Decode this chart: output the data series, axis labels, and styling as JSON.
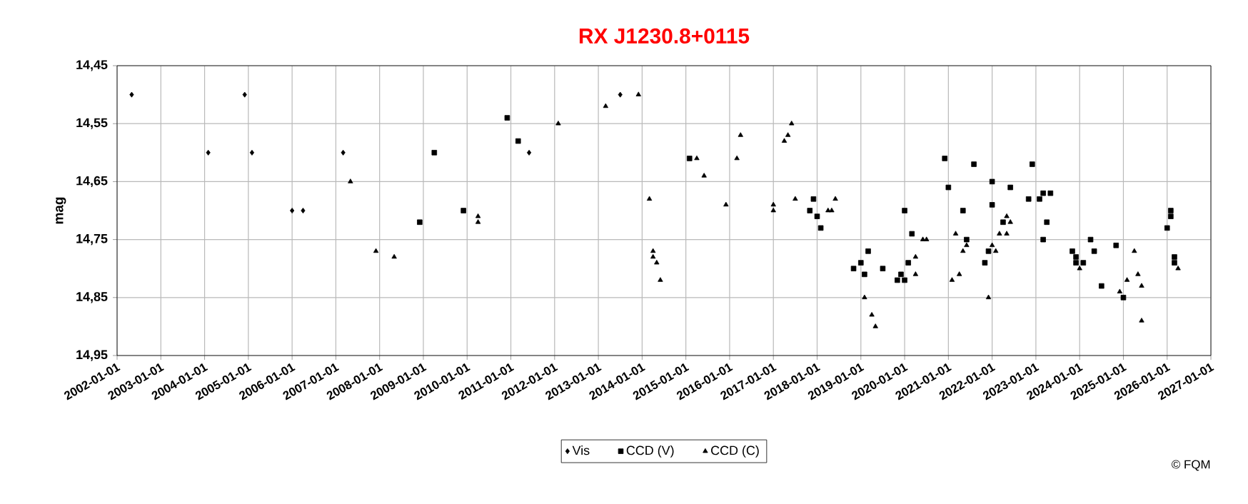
{
  "chart_data": {
    "type": "scatter",
    "title": "RX J1230.8+0115",
    "ylabel": "mag",
    "xlim": [
      "2002-01-01",
      "2027-01-01"
    ],
    "xticks": [
      {
        "value": "2002-01-01",
        "label": "2002-01-01"
      },
      {
        "value": "2003-01-01",
        "label": "2003-01-01"
      },
      {
        "value": "2004-01-01",
        "label": "2004-01-01"
      },
      {
        "value": "2005-01-01",
        "label": "2005-01-01"
      },
      {
        "value": "2006-01-01",
        "label": "2006-01-01"
      },
      {
        "value": "2007-01-01",
        "label": "2007-01-01"
      },
      {
        "value": "2008-01-01",
        "label": "2008-01-01"
      },
      {
        "value": "2009-01-01",
        "label": "2009-01-01"
      },
      {
        "value": "2010-01-01",
        "label": "2010-01-01"
      },
      {
        "value": "2011-01-01",
        "label": "2011-01-01"
      },
      {
        "value": "2012-01-01",
        "label": "2012-01-01"
      },
      {
        "value": "2013-01-01",
        "label": "2013-01-01"
      },
      {
        "value": "2014-01-01",
        "label": "2014-01-01"
      },
      {
        "value": "2015-01-01",
        "label": "2015-01-01"
      },
      {
        "value": "2016-01-01",
        "label": "2016-01-01"
      },
      {
        "value": "2017-01-01",
        "label": "2017-01-01"
      },
      {
        "value": "2018-01-01",
        "label": "2018-01-01"
      },
      {
        "value": "2019-01-01",
        "label": "2019-01-01"
      },
      {
        "value": "2020-01-01",
        "label": "2020-01-01"
      },
      {
        "value": "2021-01-01",
        "label": "2021-01-01"
      },
      {
        "value": "2022-01-01",
        "label": "2022-01-01"
      },
      {
        "value": "2023-01-01",
        "label": "2023-01-01"
      },
      {
        "value": "2024-01-01",
        "label": "2024-01-01"
      },
      {
        "value": "2025-01-01",
        "label": "2025-01-01"
      },
      {
        "value": "2026-01-01",
        "label": "2026-01-01"
      },
      {
        "value": "2027-01-01",
        "label": "2027-01-01"
      }
    ],
    "ylim": [
      14.95,
      14.45
    ],
    "yticks": [
      {
        "value": 14.45,
        "label": "14,45"
      },
      {
        "value": 14.55,
        "label": "14,55"
      },
      {
        "value": 14.65,
        "label": "14,65"
      },
      {
        "value": 14.75,
        "label": "14,75"
      },
      {
        "value": 14.85,
        "label": "14,85"
      },
      {
        "value": 14.95,
        "label": "14,95"
      }
    ],
    "grid": true,
    "legend": "bottom",
    "series": [
      {
        "name": "Vis",
        "color": "#000000",
        "marker": "diamond",
        "x": [
          "2002-05",
          "2004-02",
          "2004-12",
          "2005-02",
          "2006-01",
          "2006-04",
          "2007-03",
          "2011-06",
          "2013-07"
        ],
        "values": [
          14.5,
          14.6,
          14.5,
          14.6,
          14.7,
          14.7,
          14.6,
          14.6,
          14.5
        ]
      },
      {
        "name": "CCD (V)",
        "color": "#000000",
        "marker": "square",
        "x": [
          "2008-12",
          "2009-04",
          "2009-12",
          "2010-12",
          "2011-03",
          "2015-02",
          "2017-12",
          "2017-11",
          "2018-01",
          "2018-02",
          "2018-11",
          "2019-01",
          "2019-02",
          "2019-03",
          "2019-07",
          "2020-01",
          "2019-12",
          "2020-01",
          "2019-11",
          "2020-02",
          "2020-03",
          "2020-12",
          "2021-01",
          "2021-05",
          "2021-08",
          "2021-06",
          "2021-11",
          "2021-12",
          "2022-01",
          "2022-01",
          "2022-04",
          "2022-06",
          "2022-11",
          "2022-12",
          "2023-02",
          "2023-03",
          "2023-05",
          "2023-04",
          "2023-03",
          "2023-11",
          "2023-12",
          "2023-12",
          "2024-02",
          "2024-04",
          "2024-05",
          "2024-07",
          "2024-11",
          "2025-01",
          "2026-01",
          "2026-02",
          "2026-02",
          "2026-03",
          "2026-03"
        ],
        "values": [
          14.72,
          14.6,
          14.7,
          14.54,
          14.58,
          14.61,
          14.68,
          14.7,
          14.71,
          14.73,
          14.8,
          14.79,
          14.81,
          14.77,
          14.8,
          14.7,
          14.81,
          14.82,
          14.82,
          14.79,
          14.74,
          14.61,
          14.66,
          14.7,
          14.62,
          14.75,
          14.79,
          14.77,
          14.65,
          14.69,
          14.72,
          14.66,
          14.68,
          14.62,
          14.68,
          14.67,
          14.67,
          14.72,
          14.75,
          14.77,
          14.78,
          14.79,
          14.79,
          14.75,
          14.77,
          14.83,
          14.76,
          14.85,
          14.73,
          14.71,
          14.7,
          14.78,
          14.79
        ]
      },
      {
        "name": "CCD (C)",
        "color": "#000000",
        "marker": "triangle",
        "x": [
          "2007-05",
          "2007-12",
          "2008-05",
          "2010-04",
          "2010-04",
          "2012-02",
          "2013-03",
          "2013-12",
          "2014-03",
          "2014-04",
          "2014-04",
          "2014-05",
          "2014-06",
          "2015-04",
          "2015-06",
          "2015-12",
          "2016-03",
          "2016-04",
          "2017-01",
          "2017-01",
          "2017-04",
          "2017-05",
          "2017-06",
          "2017-07",
          "2018-04",
          "2018-05",
          "2018-06",
          "2019-02",
          "2019-04",
          "2019-05",
          "2020-04",
          "2020-04",
          "2020-06",
          "2020-07",
          "2021-03",
          "2021-02",
          "2021-04",
          "2021-05",
          "2021-06",
          "2021-12",
          "2022-01",
          "2022-02",
          "2022-03",
          "2022-05",
          "2022-05",
          "2022-06",
          "2024-01",
          "2024-12",
          "2025-02",
          "2025-04",
          "2025-05",
          "2025-06",
          "2025-06",
          "2026-04"
        ],
        "values": [
          14.65,
          14.77,
          14.78,
          14.71,
          14.72,
          14.55,
          14.52,
          14.5,
          14.68,
          14.77,
          14.78,
          14.79,
          14.82,
          14.61,
          14.64,
          14.69,
          14.61,
          14.57,
          14.7,
          14.69,
          14.58,
          14.57,
          14.55,
          14.68,
          14.7,
          14.7,
          14.68,
          14.85,
          14.88,
          14.9,
          14.81,
          14.78,
          14.75,
          14.75,
          14.74,
          14.82,
          14.81,
          14.77,
          14.76,
          14.85,
          14.76,
          14.77,
          14.74,
          14.74,
          14.71,
          14.72,
          14.8,
          14.84,
          14.82,
          14.77,
          14.81,
          14.83,
          14.89,
          14.8
        ]
      }
    ],
    "annotations": [
      "© FQM"
    ]
  }
}
